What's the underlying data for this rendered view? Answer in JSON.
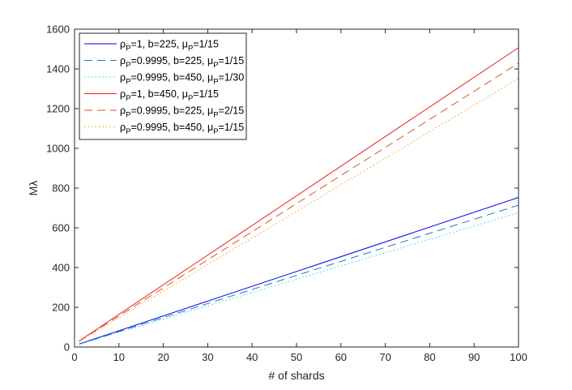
{
  "chart_data": {
    "type": "line",
    "xlabel": "# of shards",
    "ylabel": "Mλ",
    "xlim": [
      0,
      100
    ],
    "ylim": [
      0,
      1600
    ],
    "xticks": [
      0,
      10,
      20,
      30,
      40,
      50,
      60,
      70,
      80,
      90,
      100
    ],
    "yticks": [
      0,
      200,
      400,
      600,
      800,
      1000,
      1200,
      1400,
      1600
    ],
    "grid": false,
    "legend_position": "top-left",
    "series": [
      {
        "legend": {
          "rho": "=1, b=225, ",
          "mu": "=1/15"
        },
        "color": "#0000ee",
        "dash": "solid",
        "x": [
          1,
          100
        ],
        "y": [
          15,
          753
        ]
      },
      {
        "legend": {
          "rho": "=0.9995, b=225, ",
          "mu": "=1/15"
        },
        "color": "#1f77d0",
        "dash": "dashed",
        "x": [
          1,
          100
        ],
        "y": [
          14,
          714
        ]
      },
      {
        "legend": {
          "rho": "=0.9995, b=450, ",
          "mu": "=1/30"
        },
        "color": "#22d8e8",
        "dash": "dotted",
        "x": [
          1,
          100
        ],
        "y": [
          13,
          676
        ]
      },
      {
        "legend": {
          "rho": "=1, b=450, ",
          "mu": "=1/15"
        },
        "color": "#ee2020",
        "dash": "solid",
        "x": [
          1,
          100
        ],
        "y": [
          30,
          1507
        ]
      },
      {
        "legend": {
          "rho": "=0.9995, b=225, ",
          "mu": "=2/15"
        },
        "color": "#dd5522",
        "dash": "dashed",
        "x": [
          1,
          100
        ],
        "y": [
          29,
          1429
        ]
      },
      {
        "legend": {
          "rho": "=0.9995, b=450, ",
          "mu": "=1/15"
        },
        "color": "#f0a020",
        "dash": "dotted",
        "x": [
          1,
          100
        ],
        "y": [
          27,
          1352
        ]
      }
    ]
  }
}
